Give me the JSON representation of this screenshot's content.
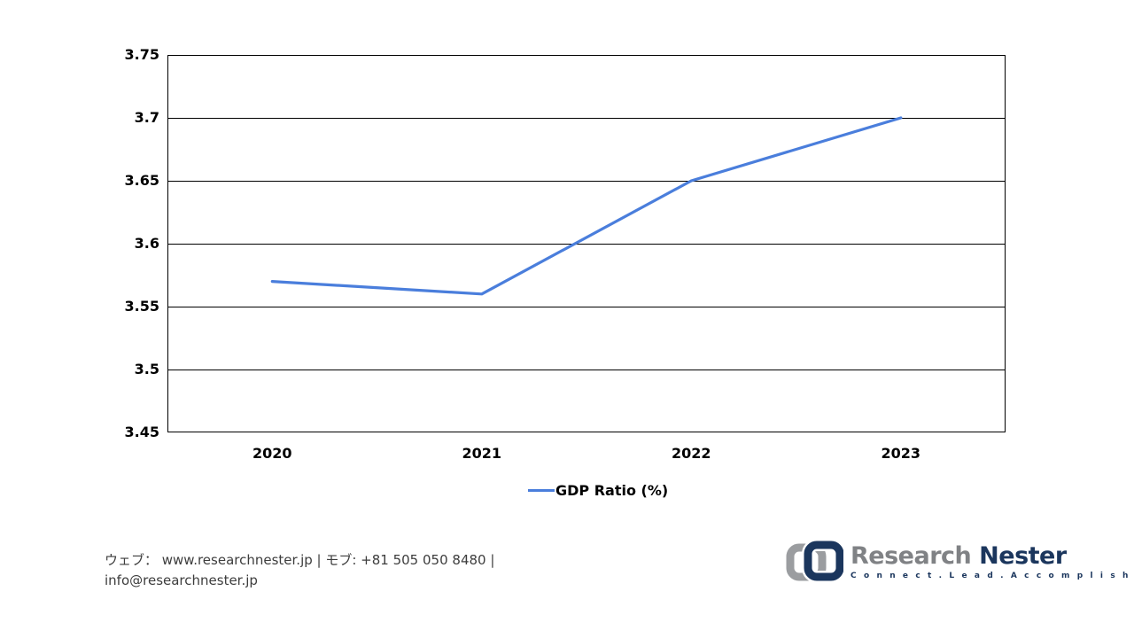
{
  "chart_data": {
    "type": "line",
    "categories": [
      "2020",
      "2021",
      "2022",
      "2023"
    ],
    "series": [
      {
        "name": "GDP Ratio (%)",
        "values": [
          3.57,
          3.56,
          3.65,
          3.7
        ],
        "color": "#4a7edc"
      }
    ],
    "title": "",
    "xlabel": "",
    "ylabel": "",
    "ylim": [
      3.45,
      3.75
    ],
    "ytick_step": 0.05,
    "yticks": [
      "3.75",
      "3.7",
      "3.65",
      "3.6",
      "3.55",
      "3.5",
      "3.45"
    ],
    "grid": "horizontal",
    "plot_border_color": "#000000",
    "legend_position": "bottom"
  },
  "legend": {
    "label": "GDP Ratio (%)"
  },
  "footer": {
    "line1": "ウェブ：  www.researchnester.jp  | モブ: +81 505 050 8480 |",
    "line2": "info@researchnester.jp"
  },
  "logo": {
    "name_part1": "Research ",
    "name_part2": "Nester",
    "tagline": "C o n n e c t .   L e a d .   A c c o m p l i s h",
    "colors": {
      "icon_gray": "#9b9da0",
      "icon_navy": "#1b365d"
    }
  }
}
